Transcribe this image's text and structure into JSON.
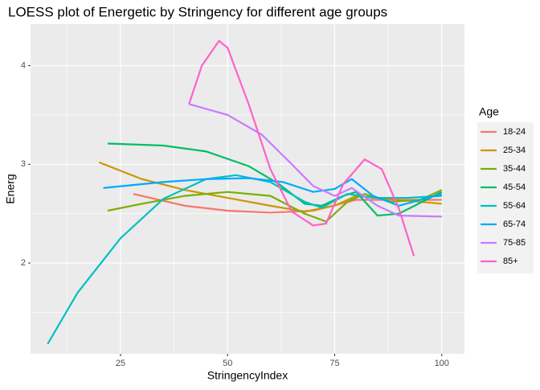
{
  "chart_data": {
    "type": "line",
    "title": "LOESS plot of Energetic by Stringency for different age groups",
    "x_label": "StringencyIndex",
    "y_label": "Energ",
    "legend_title": "Age",
    "xlim": [
      4,
      105.3
    ],
    "ylim": [
      1.08,
      4.42
    ],
    "xticks": [
      25,
      50,
      75,
      100
    ],
    "yticks": [
      2,
      3,
      4
    ],
    "grid": true,
    "legend": "right",
    "series": [
      {
        "name": "18-24",
        "color": "#F8766D",
        "x": [
          28,
          40,
          50,
          60,
          70,
          80,
          90,
          100
        ],
        "values": [
          2.7,
          2.58,
          2.53,
          2.51,
          2.53,
          2.64,
          2.64,
          2.64
        ]
      },
      {
        "name": "25-34",
        "color": "#CD9600",
        "x": [
          20,
          30,
          40,
          50,
          60,
          68,
          75,
          80,
          90,
          100
        ],
        "values": [
          3.02,
          2.85,
          2.74,
          2.66,
          2.58,
          2.52,
          2.58,
          2.68,
          2.64,
          2.6
        ]
      },
      {
        "name": "35-44",
        "color": "#7CAE00",
        "x": [
          22,
          30,
          40,
          50,
          60,
          68,
          73,
          78,
          82,
          88,
          95,
          100
        ],
        "values": [
          2.53,
          2.6,
          2.68,
          2.72,
          2.68,
          2.5,
          2.42,
          2.62,
          2.7,
          2.62,
          2.64,
          2.74
        ]
      },
      {
        "name": "45-54",
        "color": "#00BE67",
        "x": [
          22,
          35,
          45,
          55,
          62,
          68,
          72,
          77,
          80,
          85,
          90,
          100
        ],
        "values": [
          3.21,
          3.19,
          3.13,
          2.98,
          2.8,
          2.6,
          2.58,
          2.68,
          2.72,
          2.48,
          2.5,
          2.72
        ]
      },
      {
        "name": "55-64",
        "color": "#00BFC4",
        "x": [
          8,
          15,
          25,
          35,
          45,
          52,
          60,
          68,
          72,
          78,
          84,
          92,
          100
        ],
        "values": [
          1.18,
          1.7,
          2.25,
          2.65,
          2.85,
          2.89,
          2.82,
          2.62,
          2.56,
          2.7,
          2.66,
          2.66,
          2.68
        ]
      },
      {
        "name": "65-74",
        "color": "#00A9FF",
        "x": [
          21,
          35,
          45,
          55,
          63,
          70,
          75,
          79,
          84,
          90,
          100
        ],
        "values": [
          2.76,
          2.82,
          2.85,
          2.86,
          2.82,
          2.72,
          2.75,
          2.85,
          2.68,
          2.58,
          2.7
        ]
      },
      {
        "name": "75-85",
        "color": "#C77CFF",
        "x": [
          41,
          50,
          58,
          65,
          70,
          75,
          79,
          85,
          90,
          100
        ],
        "values": [
          3.61,
          3.5,
          3.3,
          3.0,
          2.78,
          2.68,
          2.76,
          2.58,
          2.48,
          2.47
        ]
      },
      {
        "name": "85+",
        "color": "#FF61CC",
        "x": [
          41,
          44,
          48,
          50,
          55,
          60,
          65,
          70,
          73,
          77,
          82,
          86,
          90,
          93.5
        ],
        "values": [
          3.61,
          4.0,
          4.25,
          4.18,
          3.6,
          2.95,
          2.52,
          2.38,
          2.4,
          2.8,
          3.05,
          2.95,
          2.55,
          2.07
        ]
      }
    ]
  }
}
